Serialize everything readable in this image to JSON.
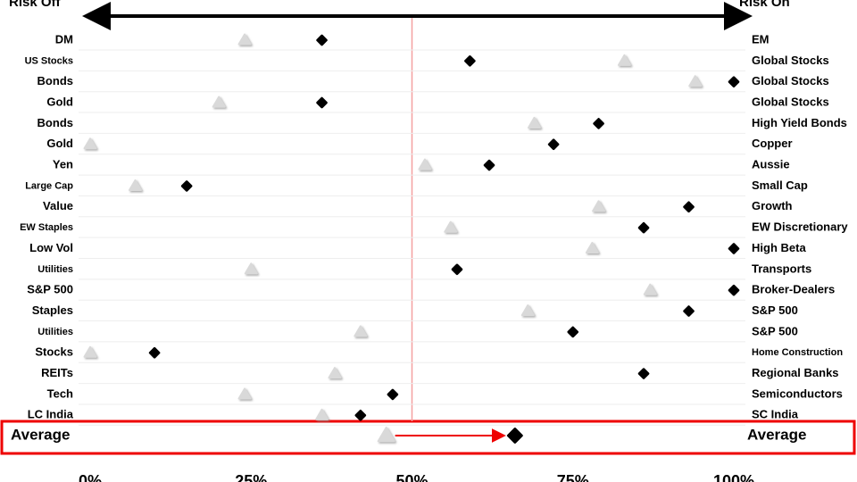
{
  "chart_data": {
    "type": "dot",
    "left_end_label": "Risk Off",
    "right_end_label": "Risk On",
    "categories": [
      "DM",
      "US Stocks",
      "Bonds",
      "Gold",
      "Bonds",
      "Gold",
      "Yen",
      "Large Cap",
      "Value",
      "EW Staples",
      "Low Vol",
      "Utilities",
      "S&P 500",
      "Staples",
      "Utilities",
      "Stocks",
      "REITs",
      "Tech",
      "LC India",
      "Average"
    ],
    "right_categories": [
      "EM",
      "Global Stocks",
      "Global Stocks",
      "Global Stocks",
      "High Yield Bonds",
      "Copper",
      "Aussie",
      "Small Cap",
      "Growth",
      "EW Discretionary",
      "High Beta",
      "Transports",
      "Broker-Dealers",
      "S&P 500",
      "S&P 500",
      "Home Construction",
      "Regional Banks",
      "Semiconductors",
      "SC India",
      "Average"
    ],
    "series": [
      {
        "color": "#d9d9d9",
        "values": [
          24,
          83,
          94,
          20,
          69,
          0,
          52,
          7,
          79,
          56,
          78,
          25,
          87,
          68,
          42,
          0,
          38,
          24,
          36,
          46
        ]
      },
      {
        "color": "#000000",
        "values": [
          36,
          59,
          100,
          36,
          79,
          72,
          62,
          15,
          93,
          86,
          100,
          57,
          100,
          93,
          75,
          10,
          86,
          47,
          42,
          66
        ]
      }
    ],
    "xlim": [
      0,
      100
    ],
    "xticks": [
      {
        "value": 0,
        "label": "0%"
      },
      {
        "value": 25,
        "label": "25%"
      },
      {
        "value": 50,
        "label": "50%"
      },
      {
        "value": 75,
        "label": "75%"
      },
      {
        "value": 100,
        "label": "100%"
      }
    ]
  }
}
